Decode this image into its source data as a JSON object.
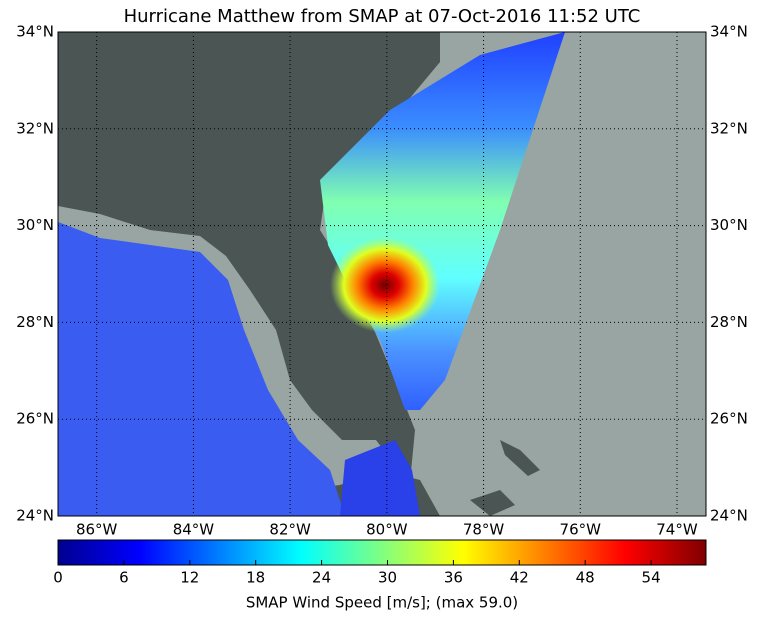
{
  "map": {
    "title": "Hurricane Matthew from SMAP at 07-Oct-2016 11:52 UTC",
    "xlim": [
      -86.8,
      -73.4
    ],
    "ylim": [
      24,
      34
    ],
    "xticks": [
      {
        "value": -86,
        "label": "86°W"
      },
      {
        "value": -84,
        "label": "84°W"
      },
      {
        "value": -82,
        "label": "82°W"
      },
      {
        "value": -80,
        "label": "80°W"
      },
      {
        "value": -78,
        "label": "78°W"
      },
      {
        "value": -76,
        "label": "76°W"
      },
      {
        "value": -74,
        "label": "74°W"
      }
    ],
    "yticks": [
      {
        "value": 24,
        "label": "24°N"
      },
      {
        "value": 26,
        "label": "26°N"
      },
      {
        "value": 28,
        "label": "28°N"
      },
      {
        "value": 30,
        "label": "30°N"
      },
      {
        "value": 32,
        "label": "32°N"
      },
      {
        "value": 34,
        "label": "34°N"
      }
    ],
    "grid": true
  },
  "colorbar": {
    "label": "SMAP Wind Speed [m/s]; (max 59.0)",
    "clim": [
      0,
      59
    ],
    "ticks": [
      0,
      6,
      12,
      18,
      24,
      30,
      36,
      42,
      48,
      54
    ],
    "colors": [
      "#00008f",
      "#0000ff",
      "#0080ff",
      "#00ffff",
      "#80ff80",
      "#ffff00",
      "#ff8000",
      "#ff0000",
      "#800000"
    ]
  }
}
